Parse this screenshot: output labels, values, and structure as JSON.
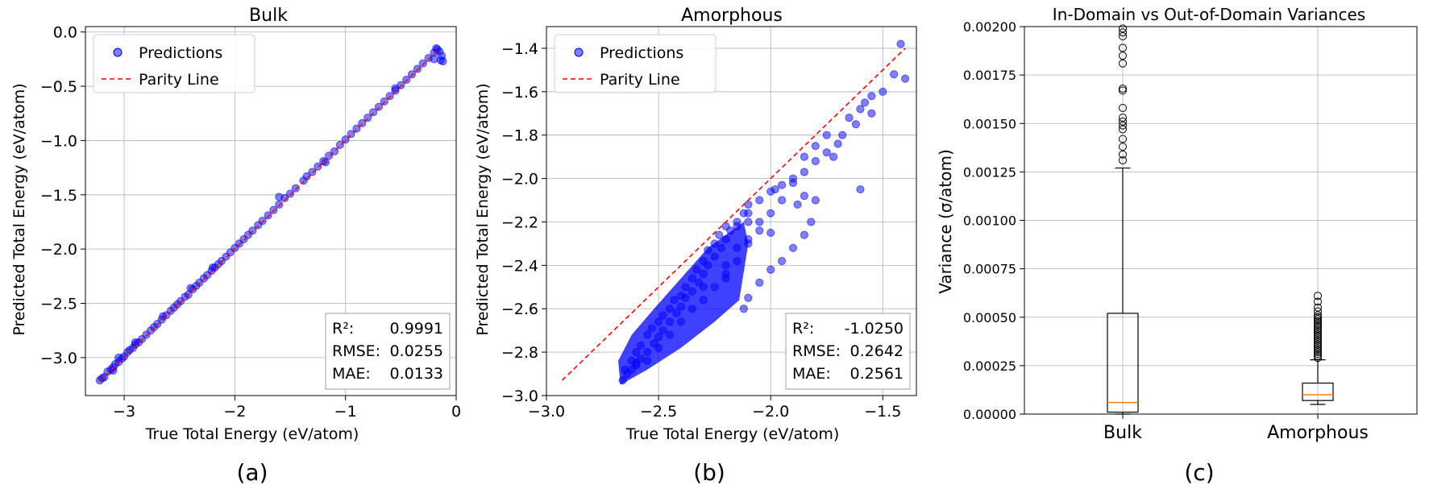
{
  "chart_data": [
    {
      "type": "scatter",
      "panel": "(a)",
      "title": "Bulk",
      "xlabel": "True Total Energy (eV/atom)",
      "ylabel": "Predicted Total Energy (eV/atom)",
      "xlim": [
        -3.35,
        0.0
      ],
      "ylim": [
        -3.35,
        0.05
      ],
      "xticks": [
        -3,
        -2,
        -1,
        0
      ],
      "xtick_labels": [
        "−3",
        "−2",
        "−1",
        "0"
      ],
      "yticks": [
        0.0,
        -0.5,
        -1.0,
        -1.5,
        -2.0,
        -2.5,
        -3.0
      ],
      "ytick_labels": [
        "0.0",
        "−0.5",
        "−1.0",
        "−1.5",
        "−2.0",
        "−2.5",
        "−3.0"
      ],
      "grid": true,
      "legend": {
        "position": "top-left",
        "entries": [
          "Predictions",
          "Parity Line"
        ]
      },
      "parity": [
        -3.22,
        -0.15
      ],
      "point_color": "#0000ff",
      "parity_color": "#ff0000",
      "series": [
        {
          "name": "Predictions",
          "points": [
            [
              -3.22,
              -3.21
            ],
            [
              -3.2,
              -3.19
            ],
            [
              -3.18,
              -3.18
            ],
            [
              -3.15,
              -3.13
            ],
            [
              -3.12,
              -3.11
            ],
            [
              -3.1,
              -3.09
            ],
            [
              -3.08,
              -3.06
            ],
            [
              -3.05,
              -3.04
            ],
            [
              -3.02,
              -3.01
            ],
            [
              -3.0,
              -2.99
            ],
            [
              -2.97,
              -2.95
            ],
            [
              -2.95,
              -2.93
            ],
            [
              -2.92,
              -2.91
            ],
            [
              -2.9,
              -2.88
            ],
            [
              -2.87,
              -2.86
            ],
            [
              -2.84,
              -2.83
            ],
            [
              -2.8,
              -2.79
            ],
            [
              -2.76,
              -2.75
            ],
            [
              -2.73,
              -2.72
            ],
            [
              -2.7,
              -2.69
            ],
            [
              -2.66,
              -2.65
            ],
            [
              -2.62,
              -2.61
            ],
            [
              -2.58,
              -2.57
            ],
            [
              -2.55,
              -2.54
            ],
            [
              -2.52,
              -2.51
            ],
            [
              -2.49,
              -2.48
            ],
            [
              -2.45,
              -2.44
            ],
            [
              -2.42,
              -2.42
            ],
            [
              -2.38,
              -2.37
            ],
            [
              -2.35,
              -2.34
            ],
            [
              -2.32,
              -2.31
            ],
            [
              -2.28,
              -2.27
            ],
            [
              -2.25,
              -2.24
            ],
            [
              -2.21,
              -2.2
            ],
            [
              -2.18,
              -2.17
            ],
            [
              -2.15,
              -2.14
            ],
            [
              -2.12,
              -2.11
            ],
            [
              -2.08,
              -2.07
            ],
            [
              -2.04,
              -2.03
            ],
            [
              -2.0,
              -1.99
            ],
            [
              -1.96,
              -1.95
            ],
            [
              -1.92,
              -1.91
            ],
            [
              -1.88,
              -1.87
            ],
            [
              -1.84,
              -1.83
            ],
            [
              -1.79,
              -1.78
            ],
            [
              -1.75,
              -1.74
            ],
            [
              -1.7,
              -1.69
            ],
            [
              -1.65,
              -1.64
            ],
            [
              -1.6,
              -1.59
            ],
            [
              -1.55,
              -1.53
            ],
            [
              -1.5,
              -1.49
            ],
            [
              -1.45,
              -1.44
            ],
            [
              -1.38,
              -1.37
            ],
            [
              -1.3,
              -1.29
            ],
            [
              -1.25,
              -1.24
            ],
            [
              -1.2,
              -1.19
            ],
            [
              -1.15,
              -1.14
            ],
            [
              -1.1,
              -1.1
            ],
            [
              -1.05,
              -1.04
            ],
            [
              -1.0,
              -0.99
            ],
            [
              -0.95,
              -0.94
            ],
            [
              -0.9,
              -0.89
            ],
            [
              -0.85,
              -0.84
            ],
            [
              -0.8,
              -0.79
            ],
            [
              -0.75,
              -0.74
            ],
            [
              -0.7,
              -0.69
            ],
            [
              -0.65,
              -0.64
            ],
            [
              -0.6,
              -0.59
            ],
            [
              -0.55,
              -0.54
            ],
            [
              -0.5,
              -0.49
            ],
            [
              -0.45,
              -0.44
            ],
            [
              -0.4,
              -0.39
            ],
            [
              -0.35,
              -0.34
            ],
            [
              -0.3,
              -0.29
            ],
            [
              -0.25,
              -0.24
            ],
            [
              -0.2,
              -0.19
            ],
            [
              -0.17,
              -0.16
            ],
            [
              -0.15,
              -0.18
            ],
            [
              -0.13,
              -0.22
            ],
            [
              -0.14,
              -0.26
            ],
            [
              -0.18,
              -0.15
            ],
            [
              -1.18,
              -1.2
            ],
            [
              -1.6,
              -1.52
            ],
            [
              -2.4,
              -2.36
            ],
            [
              -2.9,
              -2.86
            ],
            [
              -3.05,
              -3.0
            ],
            [
              -1.35,
              -1.33
            ],
            [
              -2.2,
              -2.17
            ],
            [
              -0.12,
              -0.27
            ],
            [
              -0.2,
              -0.25
            ],
            [
              -0.55,
              -0.52
            ],
            [
              -3.1,
              -3.12
            ],
            [
              -2.65,
              -2.62
            ]
          ]
        }
      ],
      "stats": {
        "r2_label": "R²:",
        "r2": "0.9991",
        "rmse_label": "RMSE:",
        "rmse": "0.0255",
        "mae_label": "MAE:",
        "mae": "0.0133"
      }
    },
    {
      "type": "scatter",
      "panel": "(b)",
      "title": "Amorphous",
      "xlabel": "True Total Energy (eV/atom)",
      "ylabel": "Predicted Total Energy (eV/atom)",
      "xlim": [
        -3.0,
        -1.35
      ],
      "ylim": [
        -3.0,
        -1.3
      ],
      "xticks": [
        -3.0,
        -2.5,
        -2.0,
        -1.5
      ],
      "xtick_labels": [
        "−3.0",
        "−2.5",
        "−2.0",
        "−1.5"
      ],
      "yticks": [
        -1.4,
        -1.6,
        -1.8,
        -2.0,
        -2.2,
        -2.4,
        -2.6,
        -2.8,
        -3.0
      ],
      "ytick_labels": [
        "−1.4",
        "−1.6",
        "−1.8",
        "−2.0",
        "−2.2",
        "−2.4",
        "−2.6",
        "−2.8",
        "−3.0"
      ],
      "grid": true,
      "legend": {
        "position": "top-left",
        "entries": [
          "Predictions",
          "Parity Line"
        ]
      },
      "parity": [
        -2.93,
        -1.4
      ],
      "point_color": "#0000ff",
      "parity_color": "#ff0000",
      "series": [
        {
          "name": "Predictions",
          "points": [
            [
              -2.66,
              -2.93
            ],
            [
              -2.64,
              -2.9
            ],
            [
              -2.62,
              -2.88
            ],
            [
              -2.6,
              -2.85
            ],
            [
              -2.58,
              -2.83
            ],
            [
              -2.55,
              -2.8
            ],
            [
              -2.52,
              -2.76
            ],
            [
              -2.5,
              -2.73
            ],
            [
              -2.48,
              -2.7
            ],
            [
              -2.45,
              -2.66
            ],
            [
              -2.42,
              -2.62
            ],
            [
              -2.4,
              -2.59
            ],
            [
              -2.38,
              -2.55
            ],
            [
              -2.35,
              -2.52
            ],
            [
              -2.32,
              -2.48
            ],
            [
              -2.3,
              -2.44
            ],
            [
              -2.28,
              -2.4
            ],
            [
              -2.25,
              -2.36
            ],
            [
              -2.22,
              -2.32
            ],
            [
              -2.2,
              -2.28
            ],
            [
              -2.18,
              -2.24
            ],
            [
              -2.15,
              -2.2
            ],
            [
              -2.12,
              -2.16
            ],
            [
              -2.1,
              -2.12
            ],
            [
              -2.05,
              -2.1
            ],
            [
              -2.0,
              -2.06
            ],
            [
              -1.95,
              -2.03
            ],
            [
              -1.9,
              -2.0
            ],
            [
              -1.85,
              -1.97
            ],
            [
              -1.8,
              -1.92
            ],
            [
              -1.75,
              -1.88
            ],
            [
              -1.7,
              -1.84
            ],
            [
              -1.68,
              -1.8
            ],
            [
              -1.62,
              -1.75
            ],
            [
              -1.6,
              -1.68
            ],
            [
              -1.55,
              -1.62
            ],
            [
              -1.5,
              -1.6
            ],
            [
              -1.45,
              -1.52
            ],
            [
              -1.42,
              -1.38
            ],
            [
              -1.4,
              -1.54
            ],
            [
              -1.55,
              -1.7
            ],
            [
              -1.6,
              -2.05
            ],
            [
              -1.75,
              -1.8
            ],
            [
              -2.6,
              -2.8
            ],
            [
              -2.55,
              -2.72
            ],
            [
              -2.5,
              -2.66
            ],
            [
              -2.45,
              -2.6
            ],
            [
              -2.4,
              -2.54
            ],
            [
              -2.35,
              -2.46
            ],
            [
              -2.3,
              -2.38
            ],
            [
              -2.25,
              -2.3
            ],
            [
              -2.2,
              -2.22
            ],
            [
              -2.62,
              -2.84
            ],
            [
              -2.58,
              -2.77
            ],
            [
              -2.53,
              -2.69
            ],
            [
              -2.48,
              -2.63
            ],
            [
              -2.43,
              -2.56
            ],
            [
              -2.38,
              -2.5
            ],
            [
              -2.33,
              -2.42
            ],
            [
              -2.28,
              -2.33
            ],
            [
              -2.23,
              -2.26
            ],
            [
              -2.15,
              -2.22
            ],
            [
              -2.1,
              -2.16
            ],
            [
              -2.05,
              -2.2
            ],
            [
              -2.0,
              -2.16
            ],
            [
              -1.95,
              -2.1
            ],
            [
              -1.9,
              -2.02
            ],
            [
              -1.85,
              -2.08
            ],
            [
              -1.82,
              -2.2
            ],
            [
              -1.8,
              -2.1
            ],
            [
              -1.85,
              -1.9
            ],
            [
              -1.8,
              -1.85
            ],
            [
              -2.12,
              -2.6
            ],
            [
              -2.1,
              -2.55
            ],
            [
              -2.05,
              -2.48
            ],
            [
              -2.0,
              -2.42
            ],
            [
              -1.95,
              -2.38
            ],
            [
              -1.9,
              -2.32
            ],
            [
              -1.85,
              -2.26
            ],
            [
              -2.2,
              -2.4
            ],
            [
              -2.15,
              -2.32
            ],
            [
              -2.1,
              -2.28
            ],
            [
              -2.05,
              -2.24
            ],
            [
              -2.3,
              -2.5
            ],
            [
              -2.2,
              -2.46
            ],
            [
              -2.65,
              -2.88
            ],
            [
              -2.6,
              -2.86
            ],
            [
              -2.55,
              -2.84
            ],
            [
              -2.5,
              -2.78
            ],
            [
              -2.45,
              -2.72
            ],
            [
              -2.4,
              -2.66
            ],
            [
              -2.35,
              -2.6
            ],
            [
              -2.3,
              -2.56
            ],
            [
              -2.25,
              -2.5
            ],
            [
              -2.2,
              -2.44
            ],
            [
              -2.15,
              -2.38
            ],
            [
              -2.1,
              -2.3
            ],
            [
              -2.1,
              -2.2
            ],
            [
              -2.0,
              -2.25
            ],
            [
              -1.98,
              -2.05
            ],
            [
              -1.88,
              -2.12
            ],
            [
              -1.72,
              -1.9
            ],
            [
              -1.65,
              -1.72
            ],
            [
              -1.58,
              -1.65
            ]
          ]
        }
      ],
      "stats": {
        "r2_label": "R²:",
        "r2": "-1.0250",
        "rmse_label": "RMSE:",
        "rmse": "0.2642",
        "mae_label": "MAE:",
        "mae": "0.2561"
      }
    },
    {
      "type": "box",
      "panel": "(c)",
      "title": "In-Domain vs Out-of-Domain Variances",
      "xlabel": "",
      "ylabel": "Variance (σ/atom)",
      "ylim": [
        0.0,
        0.002
      ],
      "yticks": [
        0.0,
        0.00025,
        0.0005,
        0.00075,
        0.001,
        0.00125,
        0.0015,
        0.00175,
        0.002
      ],
      "ytick_labels": [
        "0.00000",
        "0.00025",
        "0.00050",
        "0.00075",
        "0.00100",
        "0.00125",
        "0.00150",
        "0.00175",
        "0.00200"
      ],
      "grid": true,
      "median_color": "#ff7f0e",
      "categories": [
        "Bulk",
        "Amorphous"
      ],
      "boxes": [
        {
          "name": "Bulk",
          "whisker_low": 0.0,
          "q1": 1e-05,
          "median": 6e-05,
          "q3": 0.00052,
          "whisker_high": 0.00127,
          "outliers": [
            0.00131,
            0.00134,
            0.00138,
            0.00142,
            0.00147,
            0.00149,
            0.00151,
            0.00153,
            0.00158,
            0.00167,
            0.00168,
            0.00181,
            0.00185,
            0.00189,
            0.00195,
            0.00197,
            0.00199
          ]
        },
        {
          "name": "Amorphous",
          "whisker_low": 5e-05,
          "q1": 7e-05,
          "median": 0.0001,
          "q3": 0.00016,
          "whisker_high": 0.00028,
          "outliers": [
            0.00029,
            0.0003,
            0.00031,
            0.00032,
            0.00033,
            0.00034,
            0.00035,
            0.00036,
            0.00037,
            0.00038,
            0.00039,
            0.0004,
            0.00041,
            0.00042,
            0.00043,
            0.00044,
            0.00045,
            0.00046,
            0.00047,
            0.00048,
            0.00049,
            0.0005,
            0.00051,
            0.00053,
            0.00055,
            0.00058,
            0.00061
          ]
        }
      ]
    }
  ]
}
